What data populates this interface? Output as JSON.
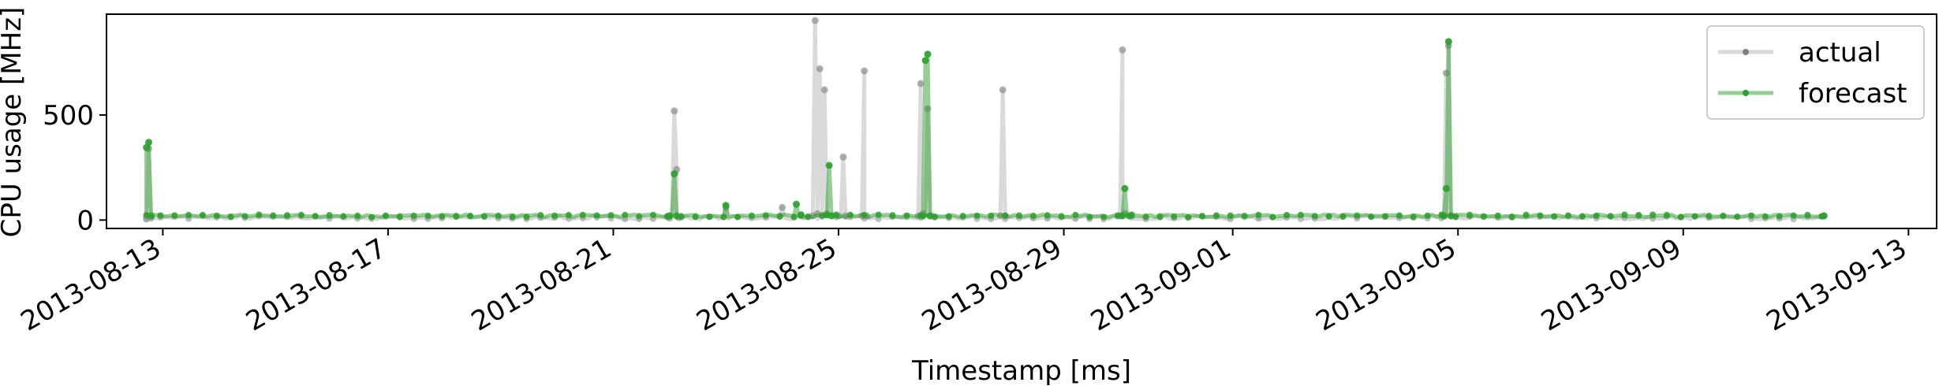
{
  "chart_data": {
    "type": "line",
    "xlabel": "Timestamp [ms]",
    "ylabel": "CPU usage [MHz]",
    "x_range": [
      "2013-08-12T00:00",
      "2013-09-13T12:00"
    ],
    "ylim": [
      -40,
      980
    ],
    "x_ticks": [
      "2013-08-13",
      "2013-08-17",
      "2013-08-21",
      "2013-08-25",
      "2013-08-29",
      "2013-09-01",
      "2013-09-05",
      "2013-09-09",
      "2013-09-13"
    ],
    "y_ticks": [
      0,
      500
    ],
    "grid": false,
    "legend": {
      "placement": "top-right"
    },
    "series": [
      {
        "name": "actual",
        "color": "#808080",
        "baseline_level": 12,
        "points": [
          [
            "2013-08-12T17:00",
            5
          ],
          [
            "2013-08-12T18:00",
            340
          ],
          [
            "2013-08-12T19:00",
            10
          ],
          [
            "2013-08-22T00:00",
            10
          ],
          [
            "2013-08-22T02:00",
            520
          ],
          [
            "2013-08-22T03:00",
            240
          ],
          [
            "2013-08-22T04:00",
            12
          ],
          [
            "2013-08-23T00:00",
            60
          ],
          [
            "2013-08-24T00:00",
            60
          ],
          [
            "2013-08-24T08:00",
            20
          ],
          [
            "2013-08-24T13:00",
            20
          ],
          [
            "2013-08-24T14:00",
            950
          ],
          [
            "2013-08-24T15:00",
            30
          ],
          [
            "2013-08-24T16:00",
            720
          ],
          [
            "2013-08-24T18:00",
            620
          ],
          [
            "2013-08-24T19:00",
            30
          ],
          [
            "2013-08-25T00:00",
            20
          ],
          [
            "2013-08-25T02:00",
            300
          ],
          [
            "2013-08-25T03:00",
            20
          ],
          [
            "2013-08-25T10:00",
            20
          ],
          [
            "2013-08-25T11:00",
            710
          ],
          [
            "2013-08-25T12:00",
            20
          ],
          [
            "2013-08-26T10:00",
            20
          ],
          [
            "2013-08-26T11:00",
            650
          ],
          [
            "2013-08-26T12:00",
            30
          ],
          [
            "2013-08-26T14:00",
            530
          ],
          [
            "2013-08-26T15:00",
            20
          ],
          [
            "2013-08-27T21:00",
            20
          ],
          [
            "2013-08-27T22:00",
            620
          ],
          [
            "2013-08-27T23:00",
            20
          ],
          [
            "2013-08-30T00:00",
            20
          ],
          [
            "2013-08-30T01:00",
            810
          ],
          [
            "2013-08-30T02:00",
            30
          ],
          [
            "2013-09-04T18:00",
            20
          ],
          [
            "2013-09-04T19:00",
            700
          ],
          [
            "2013-09-04T20:00",
            830
          ],
          [
            "2013-09-04T21:00",
            20
          ],
          [
            "2013-09-11T12:00",
            20
          ]
        ]
      },
      {
        "name": "forecast",
        "color": "#2ca02c",
        "baseline_level": 20,
        "points": [
          [
            "2013-08-12T17:00",
            345
          ],
          [
            "2013-08-12T18:00",
            370
          ],
          [
            "2013-08-12T19:00",
            20
          ],
          [
            "2013-08-22T00:00",
            20
          ],
          [
            "2013-08-22T02:00",
            220
          ],
          [
            "2013-08-22T03:00",
            20
          ],
          [
            "2013-08-23T00:00",
            70
          ],
          [
            "2013-08-24T06:00",
            75
          ],
          [
            "2013-08-24T08:00",
            25
          ],
          [
            "2013-08-24T19:00",
            25
          ],
          [
            "2013-08-24T20:00",
            260
          ],
          [
            "2013-08-24T21:00",
            20
          ],
          [
            "2013-08-26T12:00",
            20
          ],
          [
            "2013-08-26T13:00",
            760
          ],
          [
            "2013-08-26T14:00",
            790
          ],
          [
            "2013-08-26T15:00",
            20
          ],
          [
            "2013-08-30T01:00",
            20
          ],
          [
            "2013-08-30T02:00",
            150
          ],
          [
            "2013-08-30T04:00",
            20
          ],
          [
            "2013-09-04T18:00",
            20
          ],
          [
            "2013-09-04T19:00",
            150
          ],
          [
            "2013-09-04T20:00",
            850
          ],
          [
            "2013-09-04T21:00",
            20
          ],
          [
            "2013-09-11T12:00",
            20
          ]
        ]
      }
    ]
  }
}
